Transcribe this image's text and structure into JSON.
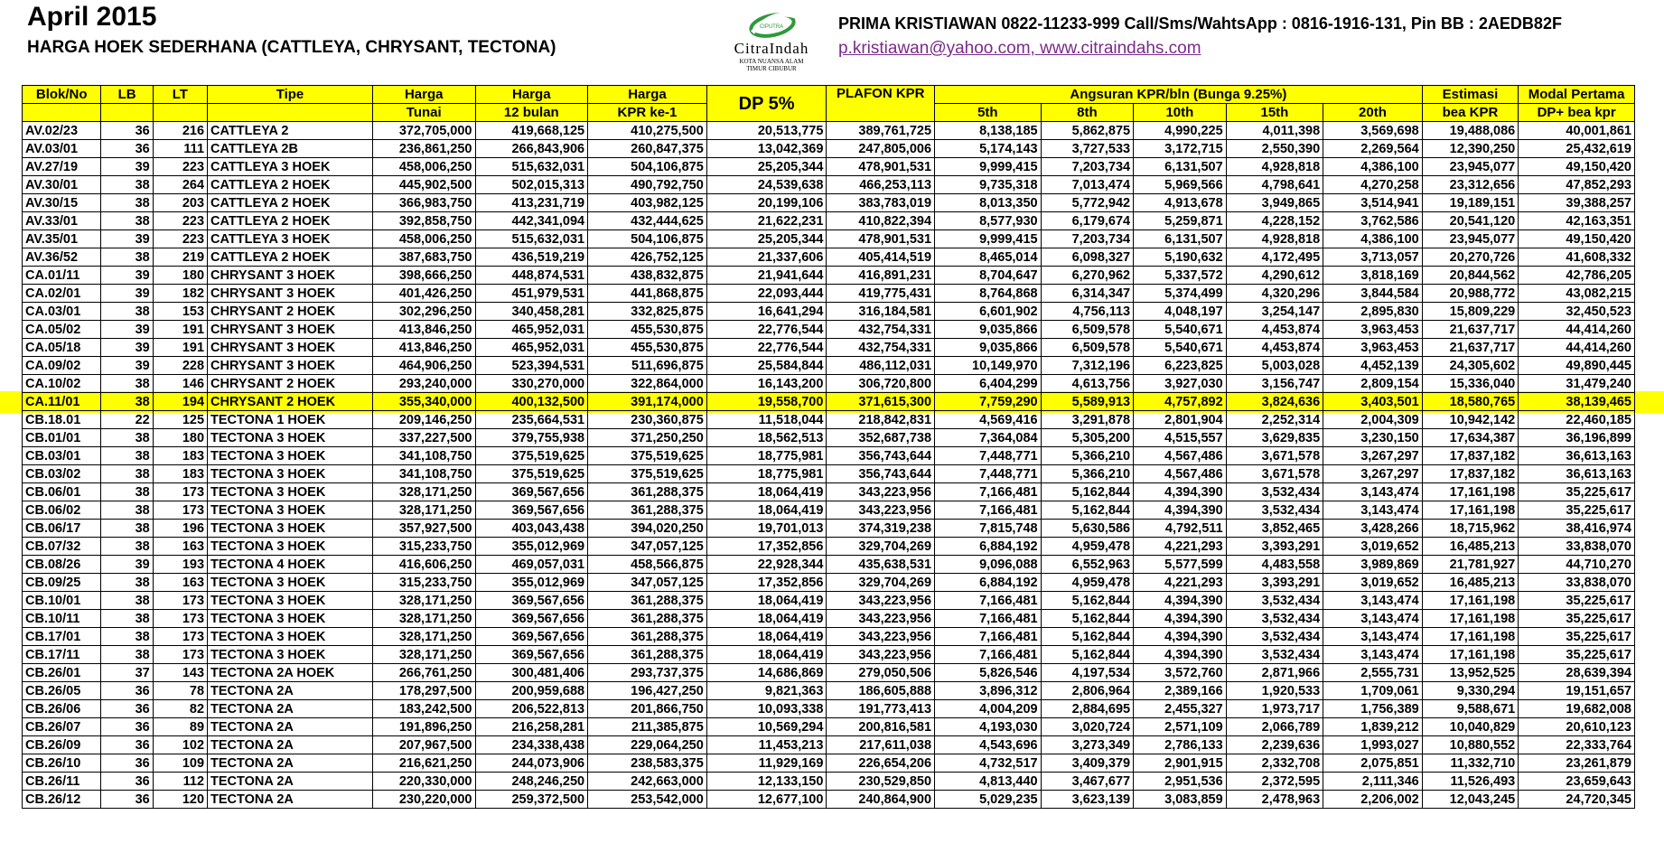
{
  "header": {
    "title": "April 2015",
    "subtitle": "HARGA HOEK SEDERHANA (CATTLEYA, CHRYSANT, TECTONA)",
    "contact": "PRIMA KRISTIAWAN 0822-11233-999 Call/Sms/WahtsApp : 0816-1916-131, Pin BB : 2AEDB82F",
    "email": "p.kristiawan@yahoo.com",
    "separator": ", ",
    "website": "www.citraindahs.com"
  },
  "logo": {
    "brand_small": "CIPUTRA",
    "name": "CitraIndah",
    "tagline_1": "KOTA NUANSA ALAM",
    "tagline_2": "TIMUR CIBUBUR",
    "icon": "swoosh-logo-icon"
  },
  "colors": {
    "highlight": "#ffff00",
    "link": "#7a2a8a",
    "logo_green": "#2e9a3a"
  },
  "table": {
    "headers": {
      "blok": "Blok/No",
      "lb": "LB",
      "lt": "LT",
      "tipe": "Tipe",
      "harga": "Harga",
      "tunai": "Tunai",
      "bulan12": "12 bulan",
      "kpr_ke1": "KPR ke-1",
      "dp": "DP 5%",
      "plafon": "PLAFON KPR",
      "angsuran": "Angsuran KPR/bln (Bunga 9.25%)",
      "th5": "5th",
      "th8": "8th",
      "th10": "10th",
      "th15": "15th",
      "th20": "20th",
      "estimasi": "Estimasi",
      "bea_kpr": "bea KPR",
      "modal": "Modal Pertama",
      "dp_bea": "DP+ bea kpr"
    },
    "highlighted_row": 15,
    "rows": [
      [
        "AV.02/23",
        "36",
        "216",
        "CATTLEYA 2",
        "372,705,000",
        "419,668,125",
        "410,275,500",
        "20,513,775",
        "389,761,725",
        "8,138,185",
        "5,862,875",
        "4,990,225",
        "4,011,398",
        "3,569,698",
        "19,488,086",
        "40,001,861"
      ],
      [
        "AV.03/01",
        "36",
        "111",
        "CATTLEYA 2B",
        "236,861,250",
        "266,843,906",
        "260,847,375",
        "13,042,369",
        "247,805,006",
        "5,174,143",
        "3,727,533",
        "3,172,715",
        "2,550,390",
        "2,269,564",
        "12,390,250",
        "25,432,619"
      ],
      [
        "AV.27/19",
        "39",
        "223",
        "CATTLEYA 3 HOEK",
        "458,006,250",
        "515,632,031",
        "504,106,875",
        "25,205,344",
        "478,901,531",
        "9,999,415",
        "7,203,734",
        "6,131,507",
        "4,928,818",
        "4,386,100",
        "23,945,077",
        "49,150,420"
      ],
      [
        "AV.30/01",
        "38",
        "264",
        "CATTLEYA 2 HOEK",
        "445,902,500",
        "502,015,313",
        "490,792,750",
        "24,539,638",
        "466,253,113",
        "9,735,318",
        "7,013,474",
        "5,969,566",
        "4,798,641",
        "4,270,258",
        "23,312,656",
        "47,852,293"
      ],
      [
        "AV.30/15",
        "38",
        "203",
        "CATTLEYA 2 HOEK",
        "366,983,750",
        "413,231,719",
        "403,982,125",
        "20,199,106",
        "383,783,019",
        "8,013,350",
        "5,772,942",
        "4,913,678",
        "3,949,865",
        "3,514,941",
        "19,189,151",
        "39,388,257"
      ],
      [
        "AV.33/01",
        "38",
        "223",
        "CATTLEYA 2 HOEK",
        "392,858,750",
        "442,341,094",
        "432,444,625",
        "21,622,231",
        "410,822,394",
        "8,577,930",
        "6,179,674",
        "5,259,871",
        "4,228,152",
        "3,762,586",
        "20,541,120",
        "42,163,351"
      ],
      [
        "AV.35/01",
        "39",
        "223",
        "CATTLEYA 3 HOEK",
        "458,006,250",
        "515,632,031",
        "504,106,875",
        "25,205,344",
        "478,901,531",
        "9,999,415",
        "7,203,734",
        "6,131,507",
        "4,928,818",
        "4,386,100",
        "23,945,077",
        "49,150,420"
      ],
      [
        "AV.36/52",
        "38",
        "219",
        "CATTLEYA 2 HOEK",
        "387,683,750",
        "436,519,219",
        "426,752,125",
        "21,337,606",
        "405,414,519",
        "8,465,014",
        "6,098,327",
        "5,190,632",
        "4,172,495",
        "3,713,057",
        "20,270,726",
        "41,608,332"
      ],
      [
        "CA.01/11",
        "39",
        "180",
        "CHRYSANT 3 HOEK",
        "398,666,250",
        "448,874,531",
        "438,832,875",
        "21,941,644",
        "416,891,231",
        "8,704,647",
        "6,270,962",
        "5,337,572",
        "4,290,612",
        "3,818,169",
        "20,844,562",
        "42,786,205"
      ],
      [
        "CA.02/01",
        "39",
        "182",
        "CHRYSANT 3 HOEK",
        "401,426,250",
        "451,979,531",
        "441,868,875",
        "22,093,444",
        "419,775,431",
        "8,764,868",
        "6,314,347",
        "5,374,499",
        "4,320,296",
        "3,844,584",
        "20,988,772",
        "43,082,215"
      ],
      [
        "CA.03/01",
        "38",
        "153",
        "CHRYSANT 2 HOEK",
        "302,296,250",
        "340,458,281",
        "332,825,875",
        "16,641,294",
        "316,184,581",
        "6,601,902",
        "4,756,113",
        "4,048,197",
        "3,254,147",
        "2,895,830",
        "15,809,229",
        "32,450,523"
      ],
      [
        "CA.05/02",
        "39",
        "191",
        "CHRYSANT 3 HOEK",
        "413,846,250",
        "465,952,031",
        "455,530,875",
        "22,776,544",
        "432,754,331",
        "9,035,866",
        "6,509,578",
        "5,540,671",
        "4,453,874",
        "3,963,453",
        "21,637,717",
        "44,414,260"
      ],
      [
        "CA.05/18",
        "39",
        "191",
        "CHRYSANT 3 HOEK",
        "413,846,250",
        "465,952,031",
        "455,530,875",
        "22,776,544",
        "432,754,331",
        "9,035,866",
        "6,509,578",
        "5,540,671",
        "4,453,874",
        "3,963,453",
        "21,637,717",
        "44,414,260"
      ],
      [
        "CA.09/02",
        "39",
        "228",
        "CHRYSANT 3 HOEK",
        "464,906,250",
        "523,394,531",
        "511,696,875",
        "25,584,844",
        "486,112,031",
        "10,149,970",
        "7,312,196",
        "6,223,825",
        "5,003,028",
        "4,452,139",
        "24,305,602",
        "49,890,445"
      ],
      [
        "CA.10/02",
        "38",
        "146",
        "CHRYSANT 2 HOEK",
        "293,240,000",
        "330,270,000",
        "322,864,000",
        "16,143,200",
        "306,720,800",
        "6,404,299",
        "4,613,756",
        "3,927,030",
        "3,156,747",
        "2,809,154",
        "15,336,040",
        "31,479,240"
      ],
      [
        "CA.11/01",
        "38",
        "194",
        "CHRYSANT 2 HOEK",
        "355,340,000",
        "400,132,500",
        "391,174,000",
        "19,558,700",
        "371,615,300",
        "7,759,290",
        "5,589,913",
        "4,757,892",
        "3,824,636",
        "3,403,501",
        "18,580,765",
        "38,139,465"
      ],
      [
        "CB.18.01",
        "22",
        "125",
        "TECTONA 1 HOEK",
        "209,146,250",
        "235,664,531",
        "230,360,875",
        "11,518,044",
        "218,842,831",
        "4,569,416",
        "3,291,878",
        "2,801,904",
        "2,252,314",
        "2,004,309",
        "10,942,142",
        "22,460,185"
      ],
      [
        "CB.01/01",
        "38",
        "180",
        "TECTONA 3 HOEK",
        "337,227,500",
        "379,755,938",
        "371,250,250",
        "18,562,513",
        "352,687,738",
        "7,364,084",
        "5,305,200",
        "4,515,557",
        "3,629,835",
        "3,230,150",
        "17,634,387",
        "36,196,899"
      ],
      [
        "CB.03/01",
        "38",
        "183",
        "TECTONA 3 HOEK",
        "341,108,750",
        "375,519,625",
        "375,519,625",
        "18,775,981",
        "356,743,644",
        "7,448,771",
        "5,366,210",
        "4,567,486",
        "3,671,578",
        "3,267,297",
        "17,837,182",
        "36,613,163"
      ],
      [
        "CB.03/02",
        "38",
        "183",
        "TECTONA 3 HOEK",
        "341,108,750",
        "375,519,625",
        "375,519,625",
        "18,775,981",
        "356,743,644",
        "7,448,771",
        "5,366,210",
        "4,567,486",
        "3,671,578",
        "3,267,297",
        "17,837,182",
        "36,613,163"
      ],
      [
        "CB.06/01",
        "38",
        "173",
        "TECTONA 3 HOEK",
        "328,171,250",
        "369,567,656",
        "361,288,375",
        "18,064,419",
        "343,223,956",
        "7,166,481",
        "5,162,844",
        "4,394,390",
        "3,532,434",
        "3,143,474",
        "17,161,198",
        "35,225,617"
      ],
      [
        "CB.06/02",
        "38",
        "173",
        "TECTONA 3 HOEK",
        "328,171,250",
        "369,567,656",
        "361,288,375",
        "18,064,419",
        "343,223,956",
        "7,166,481",
        "5,162,844",
        "4,394,390",
        "3,532,434",
        "3,143,474",
        "17,161,198",
        "35,225,617"
      ],
      [
        "CB.06/17",
        "38",
        "196",
        "TECTONA 3 HOEK",
        "357,927,500",
        "403,043,438",
        "394,020,250",
        "19,701,013",
        "374,319,238",
        "7,815,748",
        "5,630,586",
        "4,792,511",
        "3,852,465",
        "3,428,266",
        "18,715,962",
        "38,416,974"
      ],
      [
        "CB.07/32",
        "38",
        "163",
        "TECTONA 3 HOEK",
        "315,233,750",
        "355,012,969",
        "347,057,125",
        "17,352,856",
        "329,704,269",
        "6,884,192",
        "4,959,478",
        "4,221,293",
        "3,393,291",
        "3,019,652",
        "16,485,213",
        "33,838,070"
      ],
      [
        "CB.08/26",
        "39",
        "193",
        "TECTONA 4 HOEK",
        "416,606,250",
        "469,057,031",
        "458,566,875",
        "22,928,344",
        "435,638,531",
        "9,096,088",
        "6,552,963",
        "5,577,599",
        "4,483,558",
        "3,989,869",
        "21,781,927",
        "44,710,270"
      ],
      [
        "CB.09/25",
        "38",
        "163",
        "TECTONA 3 HOEK",
        "315,233,750",
        "355,012,969",
        "347,057,125",
        "17,352,856",
        "329,704,269",
        "6,884,192",
        "4,959,478",
        "4,221,293",
        "3,393,291",
        "3,019,652",
        "16,485,213",
        "33,838,070"
      ],
      [
        "CB.10/01",
        "38",
        "173",
        "TECTONA 3 HOEK",
        "328,171,250",
        "369,567,656",
        "361,288,375",
        "18,064,419",
        "343,223,956",
        "7,166,481",
        "5,162,844",
        "4,394,390",
        "3,532,434",
        "3,143,474",
        "17,161,198",
        "35,225,617"
      ],
      [
        "CB.10/11",
        "38",
        "173",
        "TECTONA 3 HOEK",
        "328,171,250",
        "369,567,656",
        "361,288,375",
        "18,064,419",
        "343,223,956",
        "7,166,481",
        "5,162,844",
        "4,394,390",
        "3,532,434",
        "3,143,474",
        "17,161,198",
        "35,225,617"
      ],
      [
        "CB.17/01",
        "38",
        "173",
        "TECTONA 3 HOEK",
        "328,171,250",
        "369,567,656",
        "361,288,375",
        "18,064,419",
        "343,223,956",
        "7,166,481",
        "5,162,844",
        "4,394,390",
        "3,532,434",
        "3,143,474",
        "17,161,198",
        "35,225,617"
      ],
      [
        "CB.17/11",
        "38",
        "173",
        "TECTONA 3 HOEK",
        "328,171,250",
        "369,567,656",
        "361,288,375",
        "18,064,419",
        "343,223,956",
        "7,166,481",
        "5,162,844",
        "4,394,390",
        "3,532,434",
        "3,143,474",
        "17,161,198",
        "35,225,617"
      ],
      [
        "CB.26/01",
        "37",
        "143",
        "TECTONA 2A HOEK",
        "266,761,250",
        "300,481,406",
        "293,737,375",
        "14,686,869",
        "279,050,506",
        "5,826,546",
        "4,197,534",
        "3,572,760",
        "2,871,966",
        "2,555,731",
        "13,952,525",
        "28,639,394"
      ],
      [
        "CB.26/05",
        "36",
        "78",
        "TECTONA 2A",
        "178,297,500",
        "200,959,688",
        "196,427,250",
        "9,821,363",
        "186,605,888",
        "3,896,312",
        "2,806,964",
        "2,389,166",
        "1,920,533",
        "1,709,061",
        "9,330,294",
        "19,151,657"
      ],
      [
        "CB.26/06",
        "36",
        "82",
        "TECTONA 2A",
        "183,242,500",
        "206,522,813",
        "201,866,750",
        "10,093,338",
        "191,773,413",
        "4,004,209",
        "2,884,695",
        "2,455,327",
        "1,973,717",
        "1,756,389",
        "9,588,671",
        "19,682,008"
      ],
      [
        "CB.26/07",
        "36",
        "89",
        "TECTONA 2A",
        "191,896,250",
        "216,258,281",
        "211,385,875",
        "10,569,294",
        "200,816,581",
        "4,193,030",
        "3,020,724",
        "2,571,109",
        "2,066,789",
        "1,839,212",
        "10,040,829",
        "20,610,123"
      ],
      [
        "CB.26/09",
        "36",
        "102",
        "TECTONA 2A",
        "207,967,500",
        "234,338,438",
        "229,064,250",
        "11,453,213",
        "217,611,038",
        "4,543,696",
        "3,273,349",
        "2,786,133",
        "2,239,636",
        "1,993,027",
        "10,880,552",
        "22,333,764"
      ],
      [
        "CB.26/10",
        "36",
        "109",
        "TECTONA 2A",
        "216,621,250",
        "244,073,906",
        "238,583,375",
        "11,929,169",
        "226,654,206",
        "4,732,517",
        "3,409,379",
        "2,901,915",
        "2,332,708",
        "2,075,851",
        "11,332,710",
        "23,261,879"
      ],
      [
        "CB.26/11",
        "36",
        "112",
        "TECTONA 2A",
        "220,330,000",
        "248,246,250",
        "242,663,000",
        "12,133,150",
        "230,529,850",
        "4,813,440",
        "3,467,677",
        "2,951,536",
        "2,372,595",
        "2,111,346",
        "11,526,493",
        "23,659,643"
      ],
      [
        "CB.26/12",
        "36",
        "120",
        "TECTONA 2A",
        "230,220,000",
        "259,372,500",
        "253,542,000",
        "12,677,100",
        "240,864,900",
        "5,029,235",
        "3,623,139",
        "3,083,859",
        "2,478,963",
        "2,206,002",
        "12,043,245",
        "24,720,345"
      ]
    ]
  }
}
